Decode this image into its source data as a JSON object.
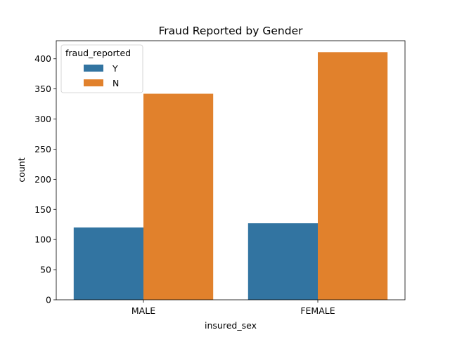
{
  "chart_data": {
    "type": "bar",
    "title": "Fraud Reported by Gender",
    "xlabel": "insured_sex",
    "ylabel": "count",
    "categories": [
      "MALE",
      "FEMALE"
    ],
    "series": [
      {
        "name": "Y",
        "color": "#3274a1",
        "values": [
          120,
          127
        ]
      },
      {
        "name": "N",
        "color": "#e1812c",
        "values": [
          342,
          411
        ]
      }
    ],
    "ylim": [
      0,
      430
    ],
    "yticks": [
      0,
      50,
      100,
      150,
      200,
      250,
      300,
      350,
      400
    ],
    "legend": {
      "title": "fraud_reported",
      "placement": "top-left"
    },
    "grid": false
  }
}
